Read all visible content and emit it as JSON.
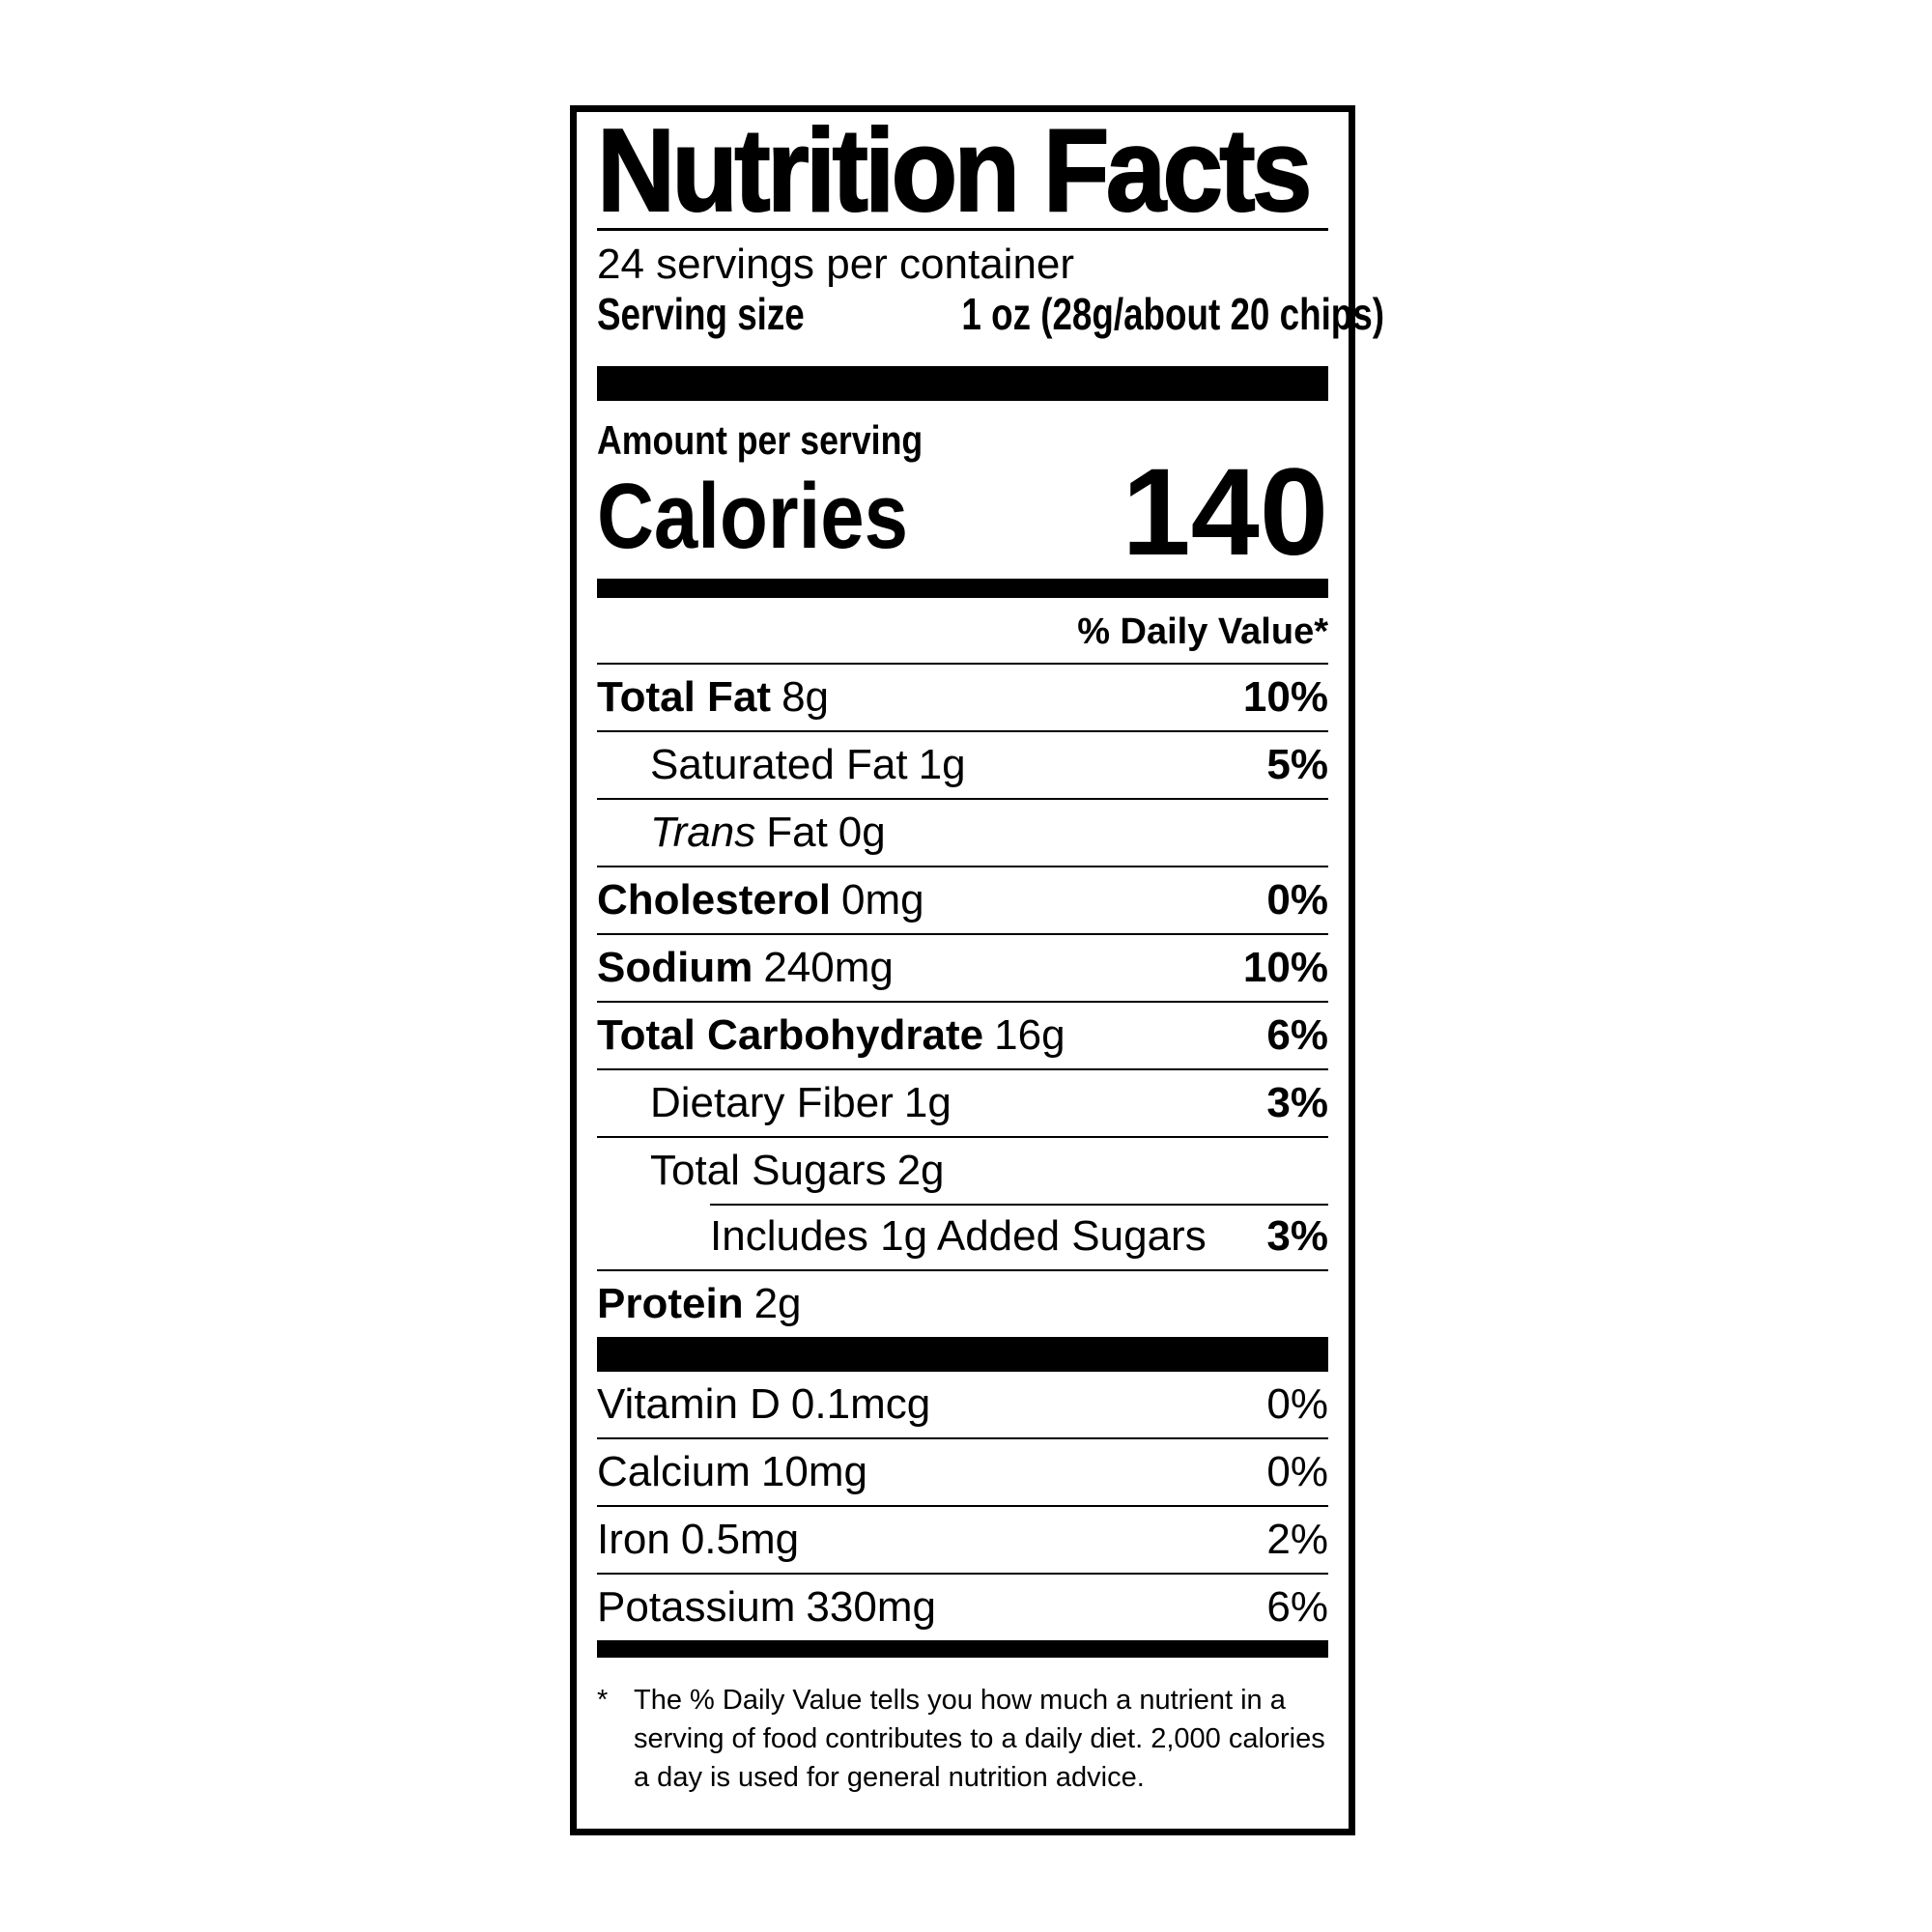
{
  "page": {
    "background": "#ffffff",
    "text_color": "#000000"
  },
  "label": {
    "title": "Nutrition Facts",
    "servings_per_container": "24 servings per container",
    "serving_size_label": "Serving size",
    "serving_size_value": "1 oz (28g/about 20 chips)",
    "amount_per_serving": "Amount per serving",
    "calories_label": "Calories",
    "calories_value": "140",
    "daily_value_header": "% Daily Value*",
    "nutrients": [
      {
        "name": "Total Fat",
        "amount": "8g",
        "dv": "10%"
      },
      {
        "name": "Saturated Fat",
        "amount": "1g",
        "dv": "5%"
      },
      {
        "name_italic": "Trans",
        "name": "Fat",
        "amount": "0g",
        "dv": ""
      },
      {
        "name": "Cholesterol",
        "amount": "0mg",
        "dv": "0%"
      },
      {
        "name": "Sodium",
        "amount": "240mg",
        "dv": "10%"
      },
      {
        "name": "Total Carbohydrate",
        "amount": "16g",
        "dv": "6%"
      },
      {
        "name": "Dietary Fiber",
        "amount": "1g",
        "dv": "3%"
      },
      {
        "name": "Total Sugars",
        "amount": "2g",
        "dv": ""
      },
      {
        "name": "Includes 1g Added Sugars",
        "amount": "",
        "dv": "3%"
      },
      {
        "name": "Protein",
        "amount": "2g",
        "dv": ""
      }
    ],
    "micronutrients": [
      {
        "name": "Vitamin D",
        "amount": "0.1mcg",
        "dv": "0%"
      },
      {
        "name": "Calcium",
        "amount": "10mg",
        "dv": "0%"
      },
      {
        "name": "Iron",
        "amount": "0.5mg",
        "dv": "2%"
      },
      {
        "name": "Potassium",
        "amount": "330mg",
        "dv": "6%"
      }
    ],
    "footnote_marker": "*",
    "footnote": "The % Daily Value tells you how much a nutrient in a serving of food contributes to a daily diet. 2,000 calories a day is used for general nutrition advice."
  }
}
